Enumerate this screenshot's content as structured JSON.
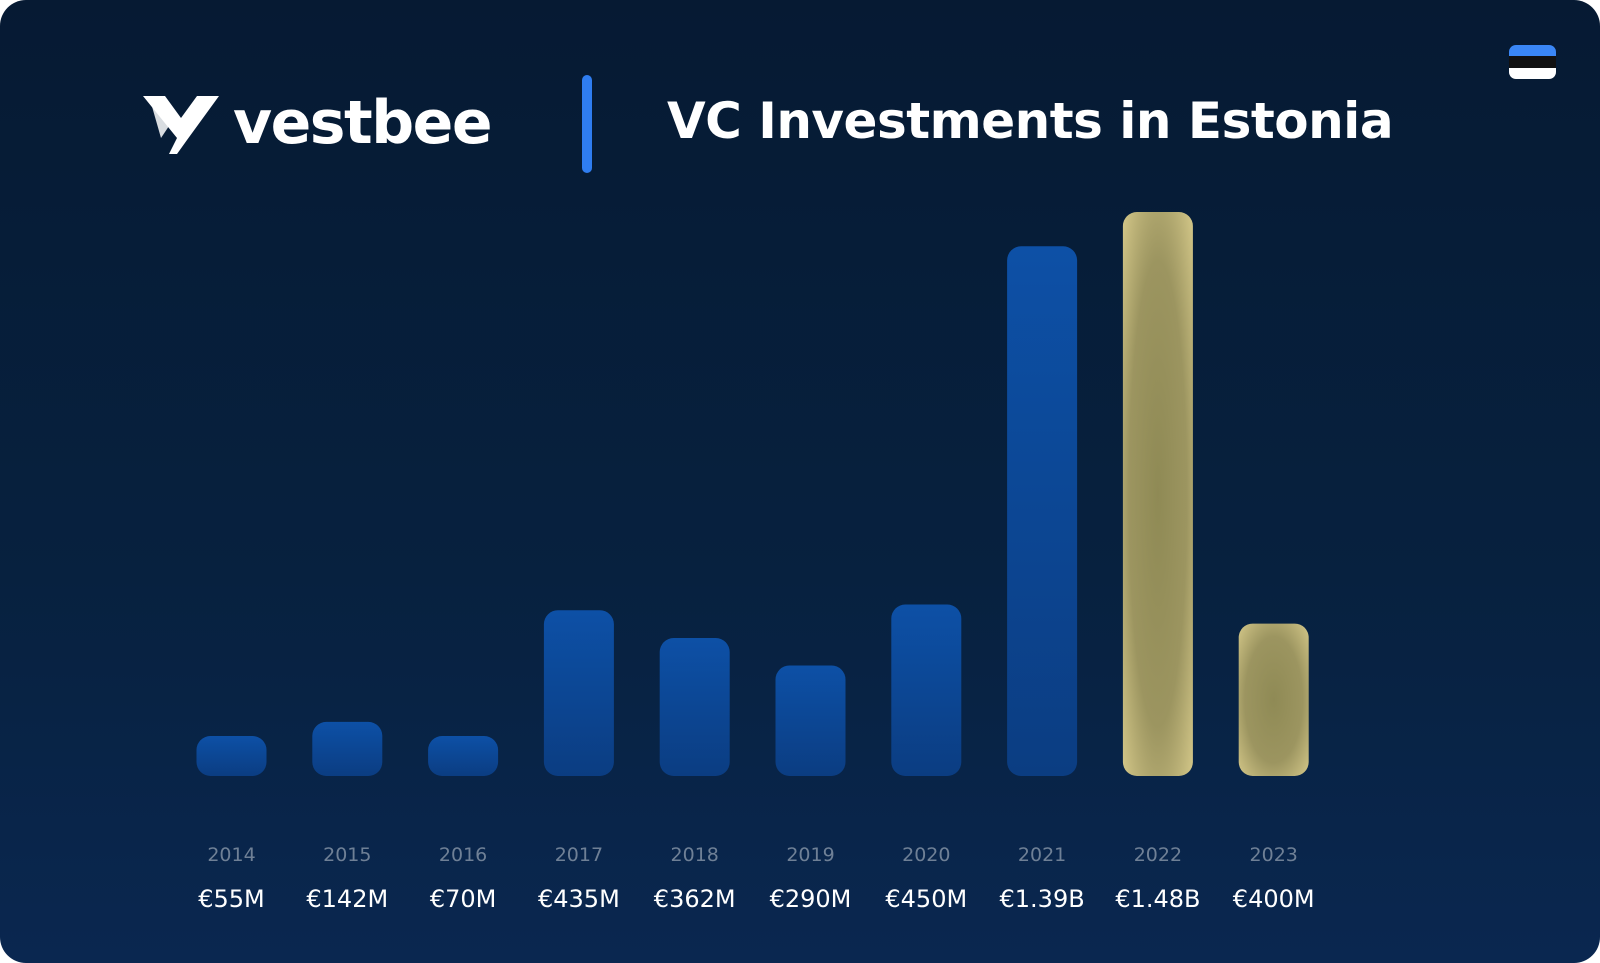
{
  "header": {
    "logo_text": "vestbee",
    "title": "VC Investments in Estonia"
  },
  "flag": {
    "stripes": [
      "#3a86f5",
      "#111111",
      "#ffffff"
    ]
  },
  "colors": {
    "background_top": "#061a33",
    "background_bottom": "#0a2750",
    "bar_actual": "#0d4fa3",
    "bar_highlight": "#b9a968",
    "divider": "#2f7df0"
  },
  "chart_data": {
    "type": "bar",
    "title": "VC Investments in Estonia",
    "categories": [
      "2014",
      "2015",
      "2016",
      "2017",
      "2018",
      "2019",
      "2020",
      "2021",
      "2022",
      "2023"
    ],
    "values": [
      55,
      142,
      70,
      435,
      362,
      290,
      450,
      1390,
      1480,
      400
    ],
    "value_labels": [
      "€55M",
      "€142M",
      "€70M",
      "€435M",
      "€362M",
      "€290M",
      "€450M",
      "€1.39B",
      "€1.48B",
      "€400M"
    ],
    "unit": "€M",
    "highlighted": [
      "2022",
      "2023"
    ],
    "ylim": [
      0,
      1480
    ],
    "grid": true,
    "xlabel": "",
    "ylabel": ""
  }
}
